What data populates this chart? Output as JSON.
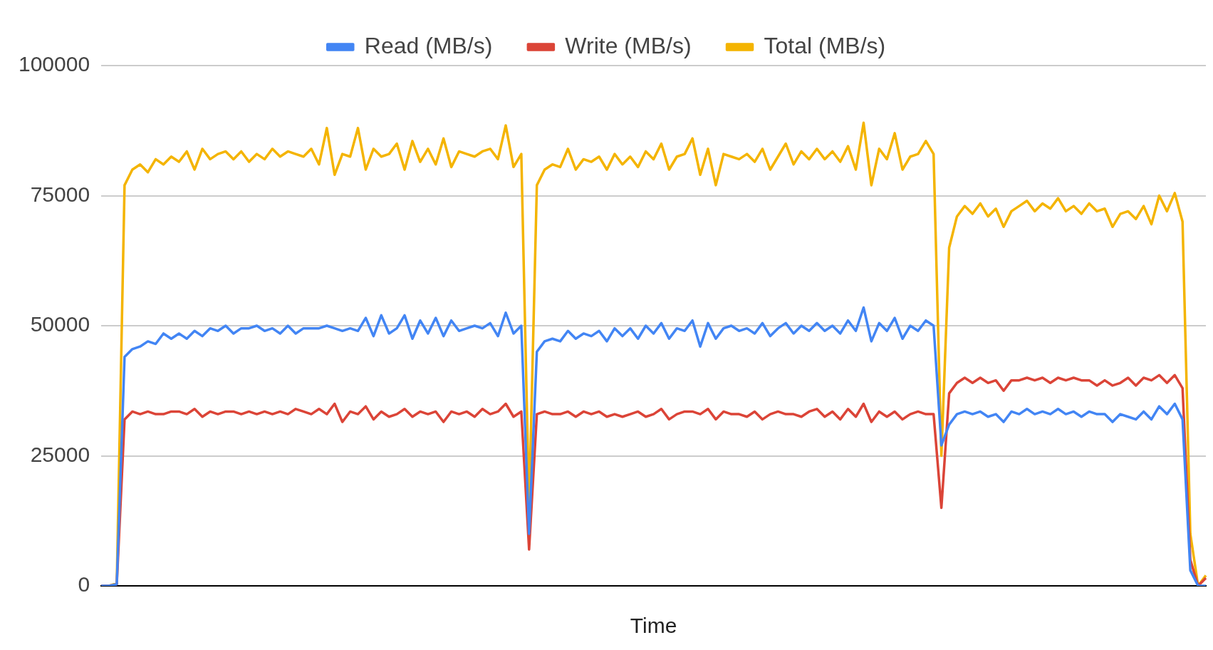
{
  "chart_data": {
    "type": "line",
    "xlabel": "Time",
    "categories": [
      null,
      null,
      null,
      null,
      null,
      null,
      null,
      null,
      null,
      null,
      null,
      null,
      null,
      null,
      null,
      null,
      null,
      null,
      null,
      null,
      null,
      null,
      null,
      null,
      null,
      null,
      null,
      null,
      null,
      null,
      null,
      null,
      null,
      null,
      null,
      null,
      null,
      null,
      null,
      null,
      null,
      null,
      null,
      null,
      null,
      null,
      null,
      null,
      null,
      null,
      null,
      null,
      null,
      null,
      null,
      null,
      null,
      null,
      null,
      null,
      null,
      null,
      null,
      null,
      null,
      null,
      null,
      null,
      null,
      null,
      null,
      null,
      null,
      null,
      null,
      null,
      null,
      null,
      null,
      null,
      null,
      null,
      null,
      null,
      null,
      null,
      null,
      null,
      null,
      null,
      null,
      null,
      null,
      null,
      null,
      null,
      null,
      null,
      null,
      null,
      null,
      null,
      null,
      null,
      null,
      null,
      null,
      null,
      null,
      null,
      null,
      null,
      null,
      null,
      null,
      null,
      null,
      null,
      null,
      null,
      null,
      null,
      null,
      null,
      null,
      null,
      null,
      null,
      null,
      null,
      null,
      null,
      null,
      null,
      null,
      null,
      null,
      null,
      null,
      null,
      null,
      null,
      null
    ],
    "series": [
      {
        "name": "Read (MB/s)",
        "color": "#4285f4",
        "values": [
          0,
          0,
          300,
          44000,
          45500,
          46000,
          47000,
          46500,
          48500,
          47500,
          48500,
          47500,
          49000,
          48000,
          49500,
          49000,
          50000,
          48500,
          49500,
          49500,
          50000,
          49000,
          49500,
          48500,
          50000,
          48500,
          49500,
          49500,
          49500,
          50000,
          49500,
          49000,
          49500,
          49000,
          51500,
          48000,
          52000,
          48500,
          49500,
          52000,
          47500,
          51000,
          48500,
          51500,
          48000,
          51000,
          49000,
          49500,
          50000,
          49500,
          50500,
          48000,
          52500,
          48500,
          50000,
          10000,
          45000,
          47000,
          47500,
          47000,
          49000,
          47500,
          48500,
          48000,
          49000,
          47000,
          49500,
          48000,
          49500,
          47500,
          50000,
          48500,
          50500,
          47500,
          49500,
          49000,
          51000,
          46000,
          50500,
          47500,
          49500,
          50000,
          49000,
          49500,
          48500,
          50500,
          48000,
          49500,
          50500,
          48500,
          50000,
          49000,
          50500,
          49000,
          50000,
          48500,
          51000,
          49000,
          53500,
          47000,
          50500,
          49000,
          51500,
          47500,
          50000,
          49000,
          51000,
          50000,
          27000,
          31000,
          33000,
          33500,
          33000,
          33500,
          32500,
          33000,
          31500,
          33500,
          33000,
          34000,
          33000,
          33500,
          33000,
          34000,
          33000,
          33500,
          32500,
          33500,
          33000,
          33000,
          31500,
          33000,
          32500,
          32000,
          33500,
          32000,
          34500,
          33000,
          35000,
          32000,
          3000,
          0,
          0
        ]
      },
      {
        "name": "Write (MB/s)",
        "color": "#db4437",
        "values": [
          0,
          0,
          300,
          32000,
          33500,
          33000,
          33500,
          33000,
          33000,
          33500,
          33500,
          33000,
          34000,
          32500,
          33500,
          33000,
          33500,
          33500,
          33000,
          33500,
          33000,
          33500,
          33000,
          33500,
          33000,
          34000,
          33500,
          33000,
          34000,
          33000,
          35000,
          31500,
          33500,
          33000,
          34500,
          32000,
          33500,
          32500,
          33000,
          34000,
          32500,
          33500,
          33000,
          33500,
          31500,
          33500,
          33000,
          33500,
          32500,
          34000,
          33000,
          33500,
          35000,
          32500,
          33500,
          7000,
          33000,
          33500,
          33000,
          33000,
          33500,
          32500,
          33500,
          33000,
          33500,
          32500,
          33000,
          32500,
          33000,
          33500,
          32500,
          33000,
          34000,
          32000,
          33000,
          33500,
          33500,
          33000,
          34000,
          32000,
          33500,
          33000,
          33000,
          32500,
          33500,
          32000,
          33000,
          33500,
          33000,
          33000,
          32500,
          33500,
          34000,
          32500,
          33500,
          32000,
          34000,
          32500,
          35000,
          31500,
          33500,
          32500,
          33500,
          32000,
          33000,
          33500,
          33000,
          33000,
          15000,
          37000,
          39000,
          40000,
          39000,
          40000,
          39000,
          39500,
          37500,
          39500,
          39500,
          40000,
          39500,
          40000,
          39000,
          40000,
          39500,
          40000,
          39500,
          39500,
          38500,
          39500,
          38500,
          39000,
          40000,
          38500,
          40000,
          39500,
          40500,
          39000,
          40500,
          38000,
          5000,
          0,
          1500
        ]
      },
      {
        "name": "Total (MB/s)",
        "color": "#f4b400",
        "values": [
          0,
          0,
          500,
          77000,
          80000,
          81000,
          79500,
          82000,
          81000,
          82500,
          81500,
          83500,
          80000,
          84000,
          82000,
          83000,
          83500,
          82000,
          83500,
          81500,
          83000,
          82000,
          84000,
          82500,
          83500,
          83000,
          82500,
          84000,
          81000,
          88000,
          79000,
          83000,
          82500,
          88000,
          80000,
          84000,
          82500,
          83000,
          85000,
          80000,
          85500,
          81500,
          84000,
          81000,
          86000,
          80500,
          83500,
          83000,
          82500,
          83500,
          84000,
          82000,
          88500,
          80500,
          83000,
          15000,
          77000,
          80000,
          81000,
          80500,
          84000,
          80000,
          82000,
          81500,
          82500,
          80000,
          83000,
          81000,
          82500,
          80500,
          83500,
          82000,
          85000,
          80000,
          82500,
          83000,
          86000,
          79000,
          84000,
          77000,
          83000,
          82500,
          82000,
          83000,
          81500,
          84000,
          80000,
          82500,
          85000,
          81000,
          83500,
          82000,
          84000,
          82000,
          83500,
          81500,
          84500,
          80000,
          89000,
          77000,
          84000,
          82000,
          87000,
          80000,
          82500,
          83000,
          85500,
          83000,
          25000,
          65000,
          71000,
          73000,
          71500,
          73500,
          71000,
          72500,
          69000,
          72000,
          73000,
          74000,
          72000,
          73500,
          72500,
          74500,
          72000,
          73000,
          71500,
          73500,
          72000,
          72500,
          69000,
          71500,
          72000,
          70500,
          73000,
          69500,
          75000,
          72000,
          75500,
          70000,
          10000,
          0,
          2000
        ]
      }
    ],
    "ylim": [
      0,
      100000
    ],
    "yticks": [
      0,
      25000,
      50000,
      75000,
      100000
    ],
    "grid": "y",
    "legend": "top",
    "tick_labels": "y",
    "marker": "none",
    "line_style": "solid"
  }
}
